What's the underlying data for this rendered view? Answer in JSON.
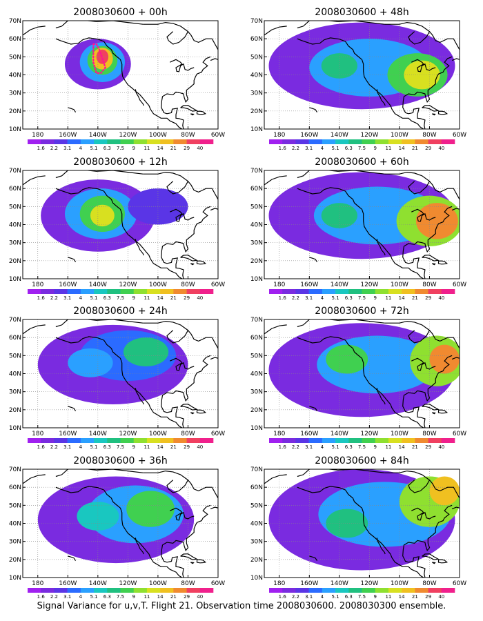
{
  "figure": {
    "caption": "Signal Variance for u,v,T. Flight 21. Observation time 2008030600. 2008030300 ensemble.",
    "colors": {
      "background": "#ffffff",
      "coast": "#000000",
      "grid": "#888888",
      "flight_track": "#ff1493"
    },
    "lat_labels": [
      "70N",
      "60N",
      "50N",
      "40N",
      "30N",
      "20N",
      "10N"
    ],
    "lon_labels": [
      "180",
      "160W",
      "140W",
      "120W",
      "100W",
      "80W",
      "60W"
    ],
    "colorbar": {
      "levels": [
        "1.6",
        "2.2",
        "3.1",
        "4",
        "5.1",
        "6.3",
        "7.5",
        "9",
        "11",
        "14",
        "21",
        "29",
        "40"
      ],
      "colors": [
        "#a020f0",
        "#7a2be0",
        "#5a35e6",
        "#2b6bff",
        "#2aa0ff",
        "#19c7c0",
        "#20c080",
        "#40d050",
        "#8fe030",
        "#d8e020",
        "#f0c020",
        "#f08a30",
        "#f04060",
        "#f0208c"
      ]
    }
  },
  "chart_data": [
    {
      "type": "heatmap",
      "title": "2008030600 + 00h",
      "blobs": [
        {
          "lon": -140,
          "lat": 46,
          "rx": 22,
          "ry": 14,
          "level": 1
        },
        {
          "lon": -137,
          "lat": 47,
          "rx": 15,
          "ry": 11,
          "level": 4
        },
        {
          "lon": -137,
          "lat": 48,
          "rx": 10,
          "ry": 8,
          "level": 7
        },
        {
          "lon": -137,
          "lat": 49,
          "rx": 7,
          "ry": 6,
          "level": 10
        },
        {
          "lon": -137,
          "lat": 50,
          "rx": 4,
          "ry": 4,
          "level": 12
        }
      ],
      "flight_track": [
        [
          -143,
          57
        ],
        [
          -141,
          57
        ],
        [
          -139,
          54
        ],
        [
          -137,
          49
        ],
        [
          -135,
          44
        ],
        [
          -138,
          41
        ],
        [
          -141,
          41
        ],
        [
          -143,
          47
        ],
        [
          -143,
          57
        ]
      ]
    },
    {
      "type": "heatmap",
      "title": "2008030600 + 12h",
      "blobs": [
        {
          "lon": -140,
          "lat": 45,
          "rx": 38,
          "ry": 20,
          "level": 1
        },
        {
          "lon": -138,
          "lat": 46,
          "rx": 24,
          "ry": 14,
          "level": 4
        },
        {
          "lon": -137,
          "lat": 46,
          "rx": 15,
          "ry": 10,
          "level": 7
        },
        {
          "lon": -137,
          "lat": 45,
          "rx": 8,
          "ry": 6,
          "level": 9
        },
        {
          "lon": -100,
          "lat": 50,
          "rx": 20,
          "ry": 10,
          "level": 2
        }
      ],
      "flight_track": []
    },
    {
      "type": "heatmap",
      "title": "2008030600 + 24h",
      "blobs": [
        {
          "lon": -130,
          "lat": 45,
          "rx": 50,
          "ry": 22,
          "level": 1
        },
        {
          "lon": -120,
          "lat": 50,
          "rx": 32,
          "ry": 14,
          "level": 3
        },
        {
          "lon": -108,
          "lat": 52,
          "rx": 15,
          "ry": 8,
          "level": 6
        },
        {
          "lon": -145,
          "lat": 46,
          "rx": 15,
          "ry": 8,
          "level": 4
        }
      ],
      "flight_track": []
    },
    {
      "type": "heatmap",
      "title": "2008030600 + 36h",
      "blobs": [
        {
          "lon": -128,
          "lat": 42,
          "rx": 52,
          "ry": 24,
          "level": 1
        },
        {
          "lon": -115,
          "lat": 45,
          "rx": 32,
          "ry": 16,
          "level": 4
        },
        {
          "lon": -105,
          "lat": 48,
          "rx": 16,
          "ry": 10,
          "level": 7
        },
        {
          "lon": -140,
          "lat": 44,
          "rx": 14,
          "ry": 8,
          "level": 5
        }
      ],
      "flight_track": []
    },
    {
      "type": "heatmap",
      "title": "2008030600 + 48h",
      "blobs": [
        {
          "lon": -125,
          "lat": 45,
          "rx": 62,
          "ry": 24,
          "level": 1
        },
        {
          "lon": -120,
          "lat": 44,
          "rx": 40,
          "ry": 16,
          "level": 4
        },
        {
          "lon": -88,
          "lat": 40,
          "rx": 20,
          "ry": 12,
          "level": 7
        },
        {
          "lon": -85,
          "lat": 40,
          "rx": 12,
          "ry": 8,
          "level": 9
        },
        {
          "lon": -140,
          "lat": 45,
          "rx": 12,
          "ry": 7,
          "level": 6
        }
      ],
      "flight_track": []
    },
    {
      "type": "heatmap",
      "title": "2008030600 + 60h",
      "blobs": [
        {
          "lon": -125,
          "lat": 45,
          "rx": 62,
          "ry": 24,
          "level": 1
        },
        {
          "lon": -115,
          "lat": 45,
          "rx": 42,
          "ry": 16,
          "level": 4
        },
        {
          "lon": -80,
          "lat": 42,
          "rx": 22,
          "ry": 14,
          "level": 8
        },
        {
          "lon": -75,
          "lat": 42,
          "rx": 14,
          "ry": 10,
          "level": 11
        },
        {
          "lon": -140,
          "lat": 45,
          "rx": 12,
          "ry": 7,
          "level": 6
        }
      ],
      "flight_track": []
    },
    {
      "type": "heatmap",
      "title": "2008030600 + 72h",
      "blobs": [
        {
          "lon": -125,
          "lat": 42,
          "rx": 62,
          "ry": 26,
          "level": 1
        },
        {
          "lon": -115,
          "lat": 45,
          "rx": 40,
          "ry": 16,
          "level": 4
        },
        {
          "lon": -75,
          "lat": 47,
          "rx": 18,
          "ry": 14,
          "level": 8
        },
        {
          "lon": -70,
          "lat": 48,
          "rx": 10,
          "ry": 8,
          "level": 11
        },
        {
          "lon": -135,
          "lat": 48,
          "rx": 14,
          "ry": 8,
          "level": 7
        }
      ],
      "flight_track": []
    },
    {
      "type": "heatmap",
      "title": "2008030600 + 84h",
      "blobs": [
        {
          "lon": -125,
          "lat": 42,
          "rx": 62,
          "ry": 28,
          "level": 1
        },
        {
          "lon": -110,
          "lat": 45,
          "rx": 44,
          "ry": 18,
          "level": 4
        },
        {
          "lon": -80,
          "lat": 52,
          "rx": 20,
          "ry": 14,
          "level": 8
        },
        {
          "lon": -70,
          "lat": 58,
          "rx": 10,
          "ry": 8,
          "level": 10
        },
        {
          "lon": -135,
          "lat": 40,
          "rx": 14,
          "ry": 8,
          "level": 6
        }
      ],
      "flight_track": []
    }
  ]
}
